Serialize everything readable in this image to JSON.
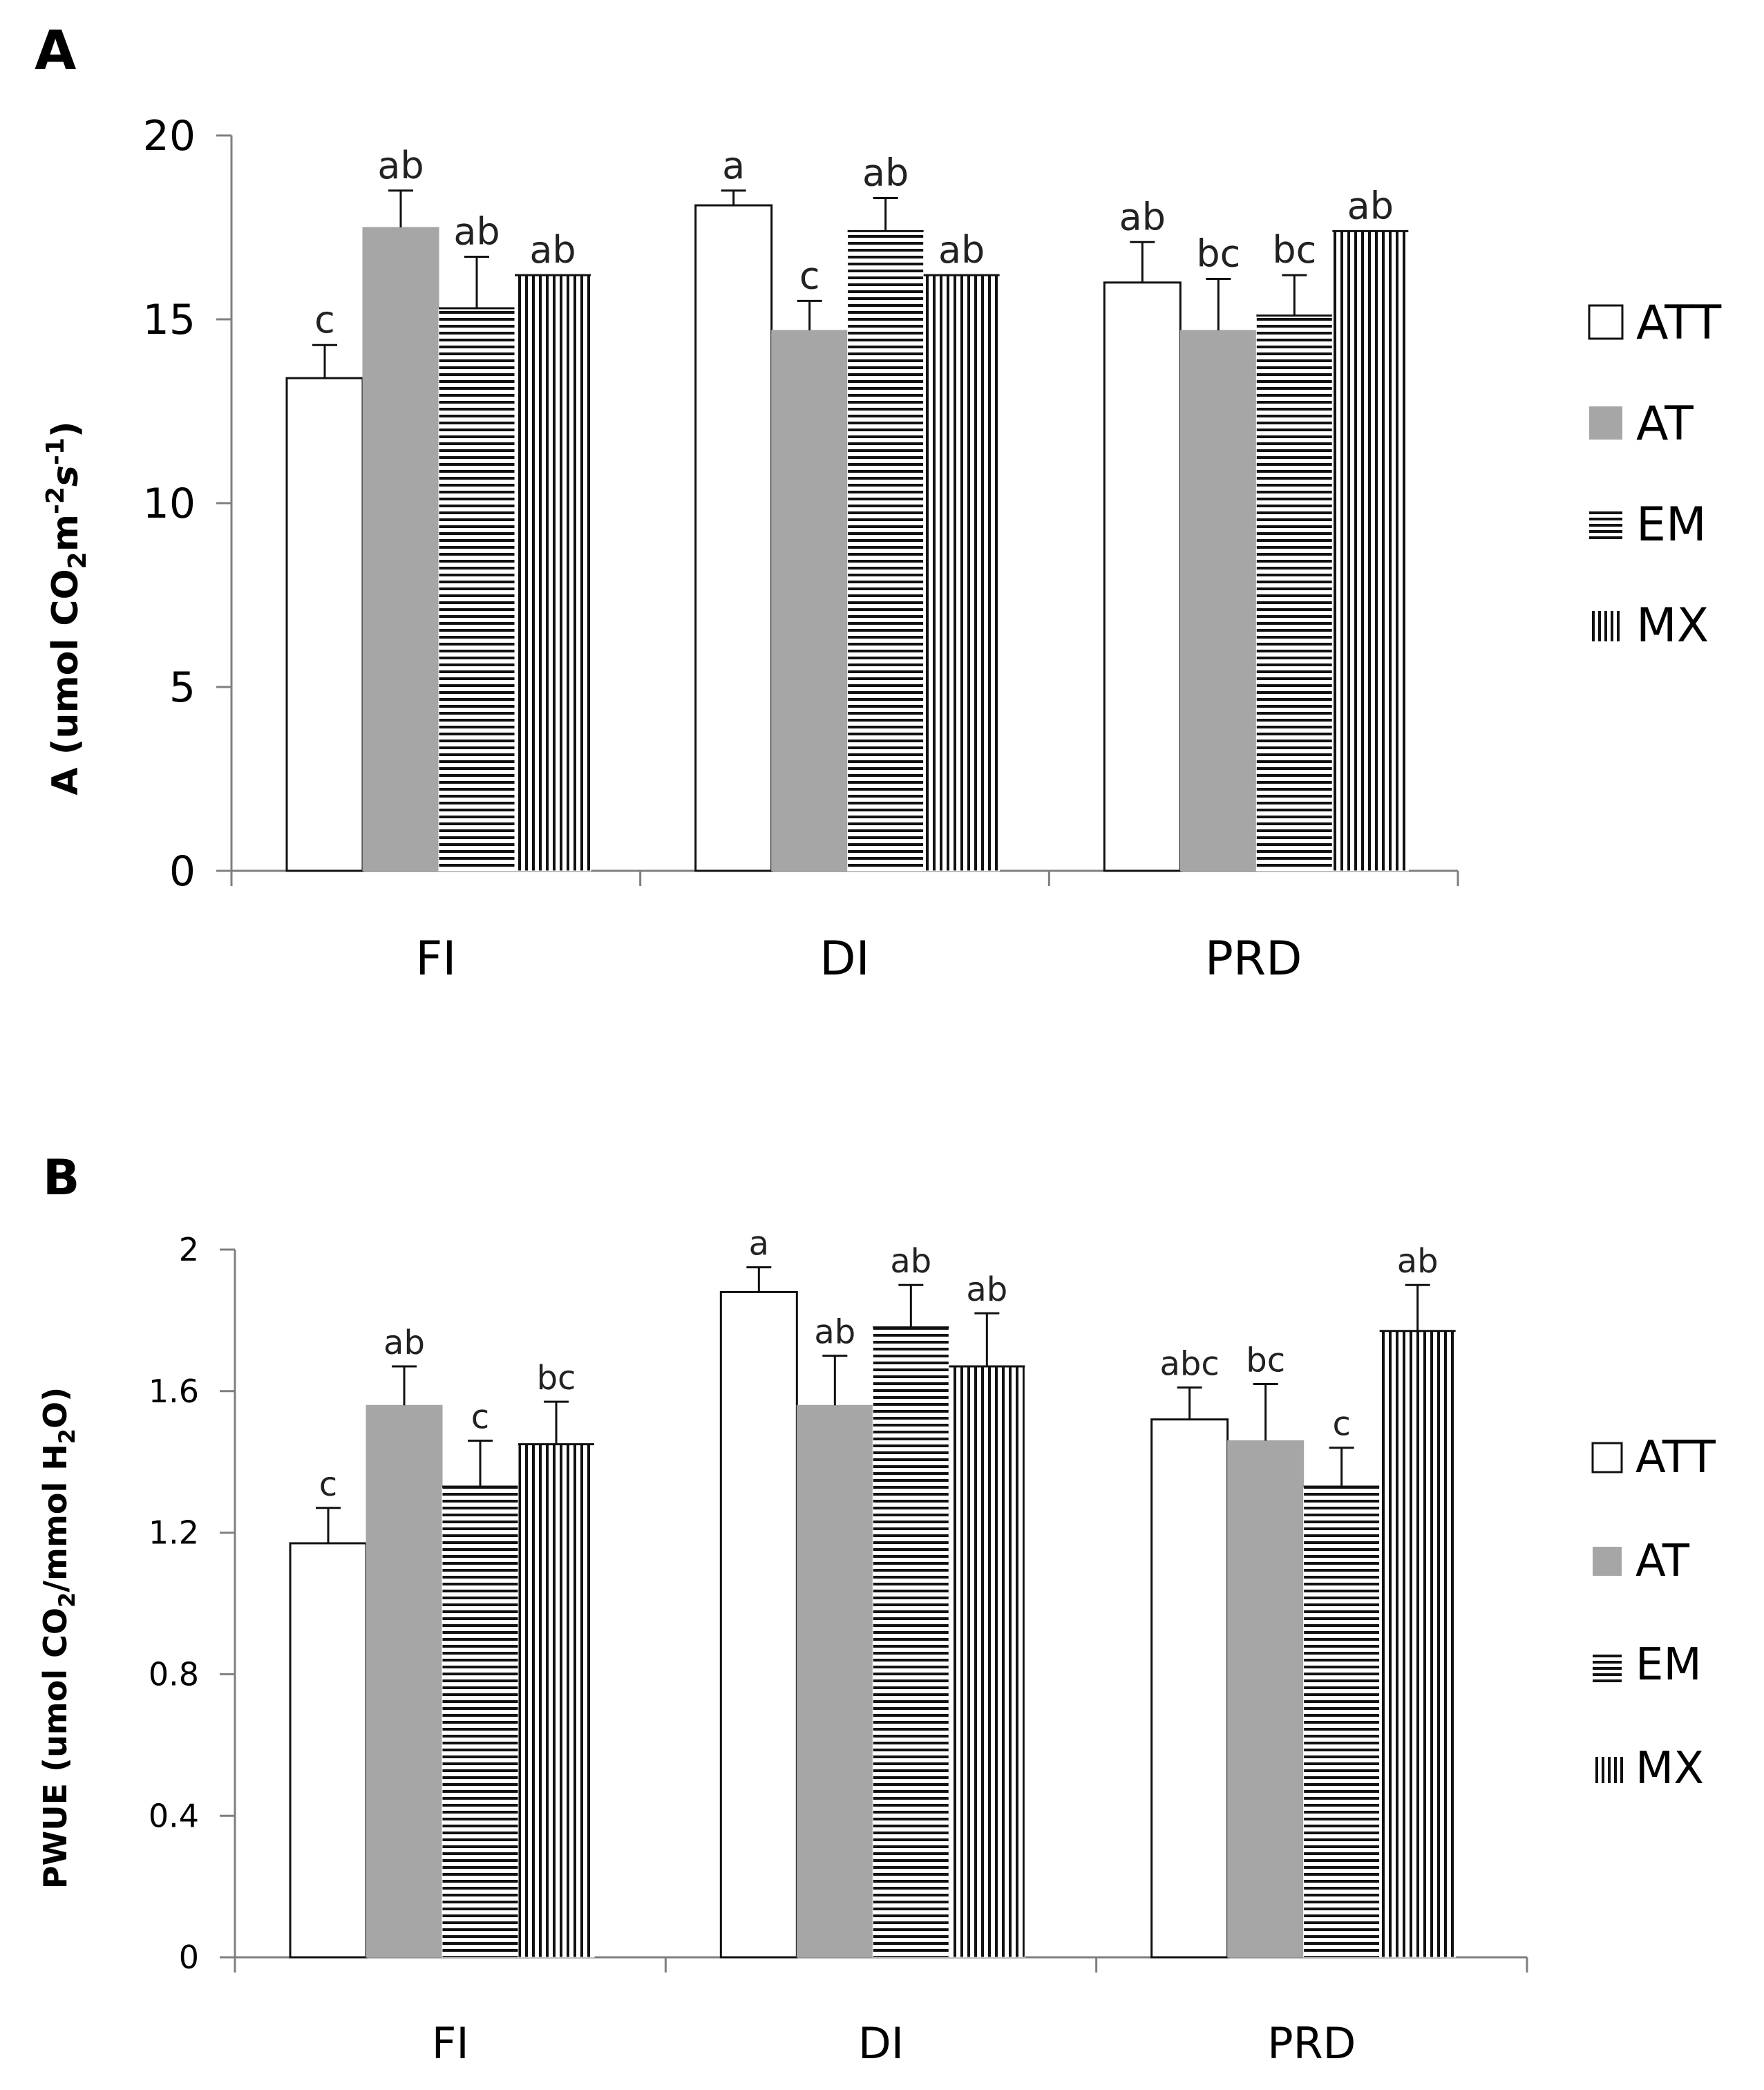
{
  "chart_data": [
    {
      "type": "bar",
      "panel": "A",
      "ylabel": "A (umol CO2m-2s-1)",
      "ylabel_parts": {
        "main": "A (umol CO",
        "sub1": "2",
        "mid": "m",
        "sup1": "-2",
        "s": "s",
        "sup2": "-1",
        "end": ")"
      },
      "ylim": [
        0,
        20
      ],
      "yticks": [
        "0",
        "5",
        "10",
        "15",
        "20"
      ],
      "ytick_values": [
        0,
        5,
        10,
        15,
        20
      ],
      "categories": [
        "FI",
        "DI",
        "PRD"
      ],
      "series": [
        {
          "name": "ATT",
          "values": [
            13.4,
            18.1,
            16.0
          ],
          "errors": [
            0.9,
            0.4,
            1.1
          ],
          "letters": [
            "c",
            "a",
            "ab"
          ]
        },
        {
          "name": "AT",
          "values": [
            17.5,
            14.7,
            14.7
          ],
          "errors": [
            1.0,
            0.8,
            1.4
          ],
          "letters": [
            "ab",
            "c",
            "bc"
          ]
        },
        {
          "name": "EM",
          "values": [
            15.3,
            17.4,
            15.1
          ],
          "errors": [
            1.4,
            0.9,
            1.1
          ],
          "letters": [
            "ab",
            "ab",
            "bc"
          ]
        },
        {
          "name": "MX",
          "values": [
            16.2,
            16.2,
            17.4
          ],
          "errors": [
            0,
            0,
            0
          ],
          "letters": [
            "ab",
            "ab",
            "ab"
          ]
        }
      ],
      "legend": [
        "ATT",
        "AT",
        "EM",
        "MX"
      ]
    },
    {
      "type": "bar",
      "panel": "B",
      "ylabel": "PWUE (umol CO2/mmol H2O)",
      "ylabel_parts": {
        "main": "PWUE (umol CO",
        "sub1": "2",
        "mid": "/mmol H",
        "sub2": "2",
        "end": "O)"
      },
      "ylim": [
        0,
        2
      ],
      "yticks": [
        "0",
        "0.4",
        "0.8",
        "1.2",
        "1.6",
        "2"
      ],
      "ytick_values": [
        0,
        0.4,
        0.8,
        1.2,
        1.6,
        2
      ],
      "categories": [
        "FI",
        "DI",
        "PRD"
      ],
      "series": [
        {
          "name": "ATT",
          "values": [
            1.17,
            1.88,
            1.52
          ],
          "errors": [
            0.1,
            0.07,
            0.09
          ],
          "letters": [
            "c",
            "a",
            "abc"
          ]
        },
        {
          "name": "AT",
          "values": [
            1.56,
            1.56,
            1.46
          ],
          "errors": [
            0.11,
            0.14,
            0.16
          ],
          "letters": [
            "ab",
            "ab",
            "bc"
          ]
        },
        {
          "name": "EM",
          "values": [
            1.33,
            1.78,
            1.33
          ],
          "errors": [
            0.13,
            0.12,
            0.11
          ],
          "letters": [
            "c",
            "ab",
            "c"
          ]
        },
        {
          "name": "MX",
          "values": [
            1.45,
            1.67,
            1.77
          ],
          "errors": [
            0.12,
            0.15,
            0.13
          ],
          "letters": [
            "bc",
            "ab",
            "ab"
          ]
        }
      ],
      "legend": [
        "ATT",
        "AT",
        "EM",
        "MX"
      ]
    }
  ]
}
